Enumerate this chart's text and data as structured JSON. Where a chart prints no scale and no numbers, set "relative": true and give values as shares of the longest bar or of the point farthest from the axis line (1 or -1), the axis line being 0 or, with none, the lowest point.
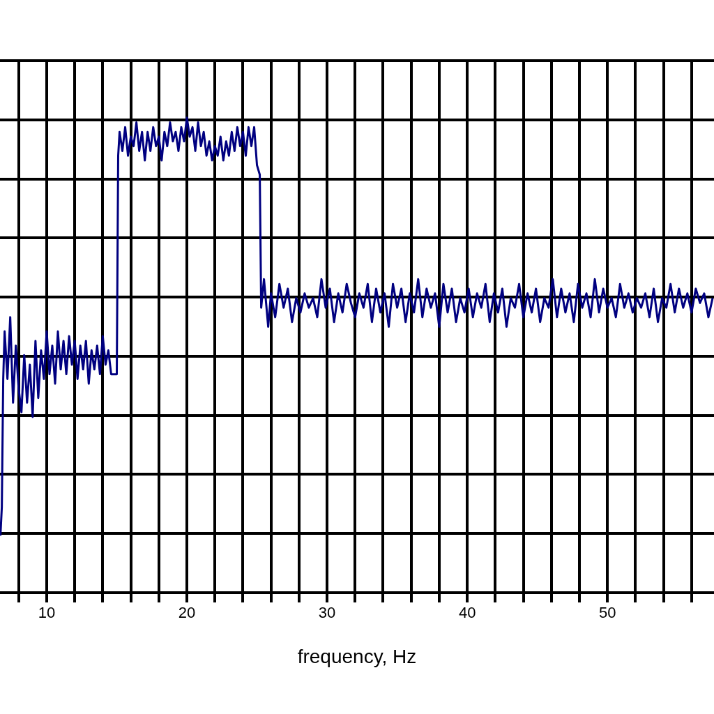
{
  "chart_data": {
    "type": "line",
    "xlabel": "frequency, Hz",
    "relative": true,
    "grid": true,
    "marker": "none",
    "line_style": "solid",
    "xlim": [
      6.67,
      57.6
    ],
    "xticks": [
      {
        "value": 8,
        "label": null
      },
      10,
      {
        "value": 12,
        "label": null
      },
      {
        "value": 14,
        "label": null
      },
      {
        "value": 16,
        "label": null
      },
      {
        "value": 18,
        "label": null
      },
      20,
      {
        "value": 22,
        "label": null
      },
      {
        "value": 24,
        "label": null
      },
      {
        "value": 26,
        "label": null
      },
      {
        "value": 28,
        "label": null
      },
      30,
      {
        "value": 32,
        "label": null
      },
      {
        "value": 34,
        "label": null
      },
      {
        "value": 36,
        "label": null
      },
      {
        "value": 38,
        "label": null
      },
      40,
      {
        "value": 42,
        "label": null
      },
      {
        "value": 44,
        "label": null
      },
      {
        "value": 46,
        "label": null
      },
      {
        "value": 48,
        "label": null
      },
      50,
      {
        "value": 52,
        "label": null
      },
      {
        "value": 54,
        "label": null
      },
      {
        "value": 56,
        "label": null
      }
    ],
    "series": [
      {
        "color": "#000080",
        "x": [
          6.7,
          6.8,
          6.9,
          7.0,
          7.2,
          7.4,
          7.6,
          7.8,
          8.0,
          8.2,
          8.4,
          8.6,
          8.8,
          9.0,
          9.2,
          9.4,
          9.6,
          9.8,
          10.0,
          10.2,
          10.4,
          10.6,
          10.8,
          11.0,
          11.2,
          11.4,
          11.6,
          11.8,
          12.0,
          12.2,
          12.4,
          12.6,
          12.8,
          13.0,
          13.2,
          13.4,
          13.6,
          13.8,
          14.0,
          14.2,
          14.4,
          14.6,
          14.8,
          15.0,
          15.1,
          15.2,
          15.4,
          15.6,
          15.8,
          16.0,
          16.2,
          16.4,
          16.6,
          16.8,
          17.0,
          17.2,
          17.4,
          17.6,
          17.8,
          18.0,
          18.2,
          18.4,
          18.6,
          18.8,
          19.0,
          19.2,
          19.4,
          19.6,
          19.8,
          20.0,
          20.2,
          20.4,
          20.6,
          20.8,
          21.0,
          21.2,
          21.4,
          21.6,
          21.8,
          22.0,
          22.2,
          22.4,
          22.6,
          22.8,
          23.0,
          23.2,
          23.4,
          23.6,
          23.8,
          24.0,
          24.2,
          24.4,
          24.6,
          24.8,
          25.0,
          25.2,
          25.3,
          25.5,
          25.8,
          26.0,
          26.3,
          26.6,
          26.9,
          27.2,
          27.5,
          27.8,
          28.1,
          28.4,
          28.7,
          29.0,
          29.3,
          29.6,
          29.9,
          30.2,
          30.5,
          30.8,
          31.1,
          31.4,
          31.7,
          32.0,
          32.3,
          32.6,
          32.9,
          33.2,
          33.5,
          33.8,
          34.1,
          34.4,
          34.7,
          35.0,
          35.3,
          35.6,
          35.9,
          36.2,
          36.5,
          36.8,
          37.1,
          37.4,
          37.7,
          38.0,
          38.3,
          38.6,
          38.9,
          39.2,
          39.5,
          39.8,
          40.1,
          40.4,
          40.7,
          41.0,
          41.3,
          41.6,
          41.9,
          42.2,
          42.5,
          42.8,
          43.1,
          43.4,
          43.7,
          44.0,
          44.3,
          44.6,
          44.9,
          45.2,
          45.5,
          45.8,
          46.1,
          46.4,
          46.7,
          47.0,
          47.3,
          47.6,
          47.9,
          48.2,
          48.5,
          48.8,
          49.1,
          49.4,
          49.7,
          50.0,
          50.3,
          50.6,
          50.9,
          51.2,
          51.5,
          51.8,
          52.1,
          52.4,
          52.7,
          53.0,
          53.3,
          53.6,
          53.9,
          54.2,
          54.5,
          54.8,
          55.1,
          55.4,
          55.7,
          56.0,
          56.3,
          56.6,
          56.9,
          57.2,
          57.5
        ],
        "values": [
          0.12,
          0.18,
          0.45,
          0.55,
          0.45,
          0.58,
          0.4,
          0.52,
          0.43,
          0.38,
          0.5,
          0.4,
          0.48,
          0.37,
          0.53,
          0.41,
          0.51,
          0.45,
          0.55,
          0.46,
          0.52,
          0.44,
          0.55,
          0.47,
          0.53,
          0.46,
          0.54,
          0.48,
          0.53,
          0.45,
          0.52,
          0.47,
          0.53,
          0.44,
          0.51,
          0.47,
          0.52,
          0.46,
          0.54,
          0.48,
          0.51,
          0.46,
          0.46,
          0.46,
          0.92,
          0.97,
          0.93,
          0.98,
          0.92,
          0.96,
          0.94,
          0.99,
          0.93,
          0.97,
          0.91,
          0.97,
          0.93,
          0.98,
          0.94,
          0.96,
          0.91,
          0.97,
          0.94,
          0.99,
          0.95,
          0.97,
          0.93,
          0.98,
          0.95,
          1.0,
          0.96,
          0.98,
          0.93,
          0.99,
          0.94,
          0.97,
          0.92,
          0.95,
          0.91,
          0.94,
          0.92,
          0.96,
          0.91,
          0.95,
          0.92,
          0.97,
          0.93,
          0.98,
          0.94,
          0.97,
          0.92,
          0.98,
          0.94,
          0.98,
          0.9,
          0.88,
          0.6,
          0.66,
          0.56,
          0.63,
          0.58,
          0.65,
          0.6,
          0.64,
          0.57,
          0.62,
          0.59,
          0.63,
          0.6,
          0.62,
          0.58,
          0.66,
          0.6,
          0.64,
          0.57,
          0.63,
          0.59,
          0.65,
          0.61,
          0.58,
          0.63,
          0.6,
          0.65,
          0.57,
          0.64,
          0.59,
          0.63,
          0.56,
          0.65,
          0.6,
          0.64,
          0.57,
          0.63,
          0.59,
          0.66,
          0.58,
          0.64,
          0.6,
          0.63,
          0.56,
          0.65,
          0.59,
          0.64,
          0.57,
          0.62,
          0.59,
          0.64,
          0.58,
          0.63,
          0.6,
          0.65,
          0.57,
          0.63,
          0.59,
          0.64,
          0.56,
          0.62,
          0.6,
          0.65,
          0.58,
          0.63,
          0.59,
          0.64,
          0.57,
          0.62,
          0.6,
          0.66,
          0.58,
          0.64,
          0.59,
          0.63,
          0.57,
          0.65,
          0.6,
          0.63,
          0.58,
          0.66,
          0.59,
          0.64,
          0.6,
          0.62,
          0.58,
          0.65,
          0.6,
          0.63,
          0.59,
          0.62,
          0.6,
          0.63,
          0.58,
          0.64,
          0.57,
          0.62,
          0.6,
          0.65,
          0.59,
          0.64,
          0.6,
          0.63,
          0.59,
          0.64,
          0.61,
          0.63,
          0.58,
          0.62
        ]
      }
    ]
  }
}
